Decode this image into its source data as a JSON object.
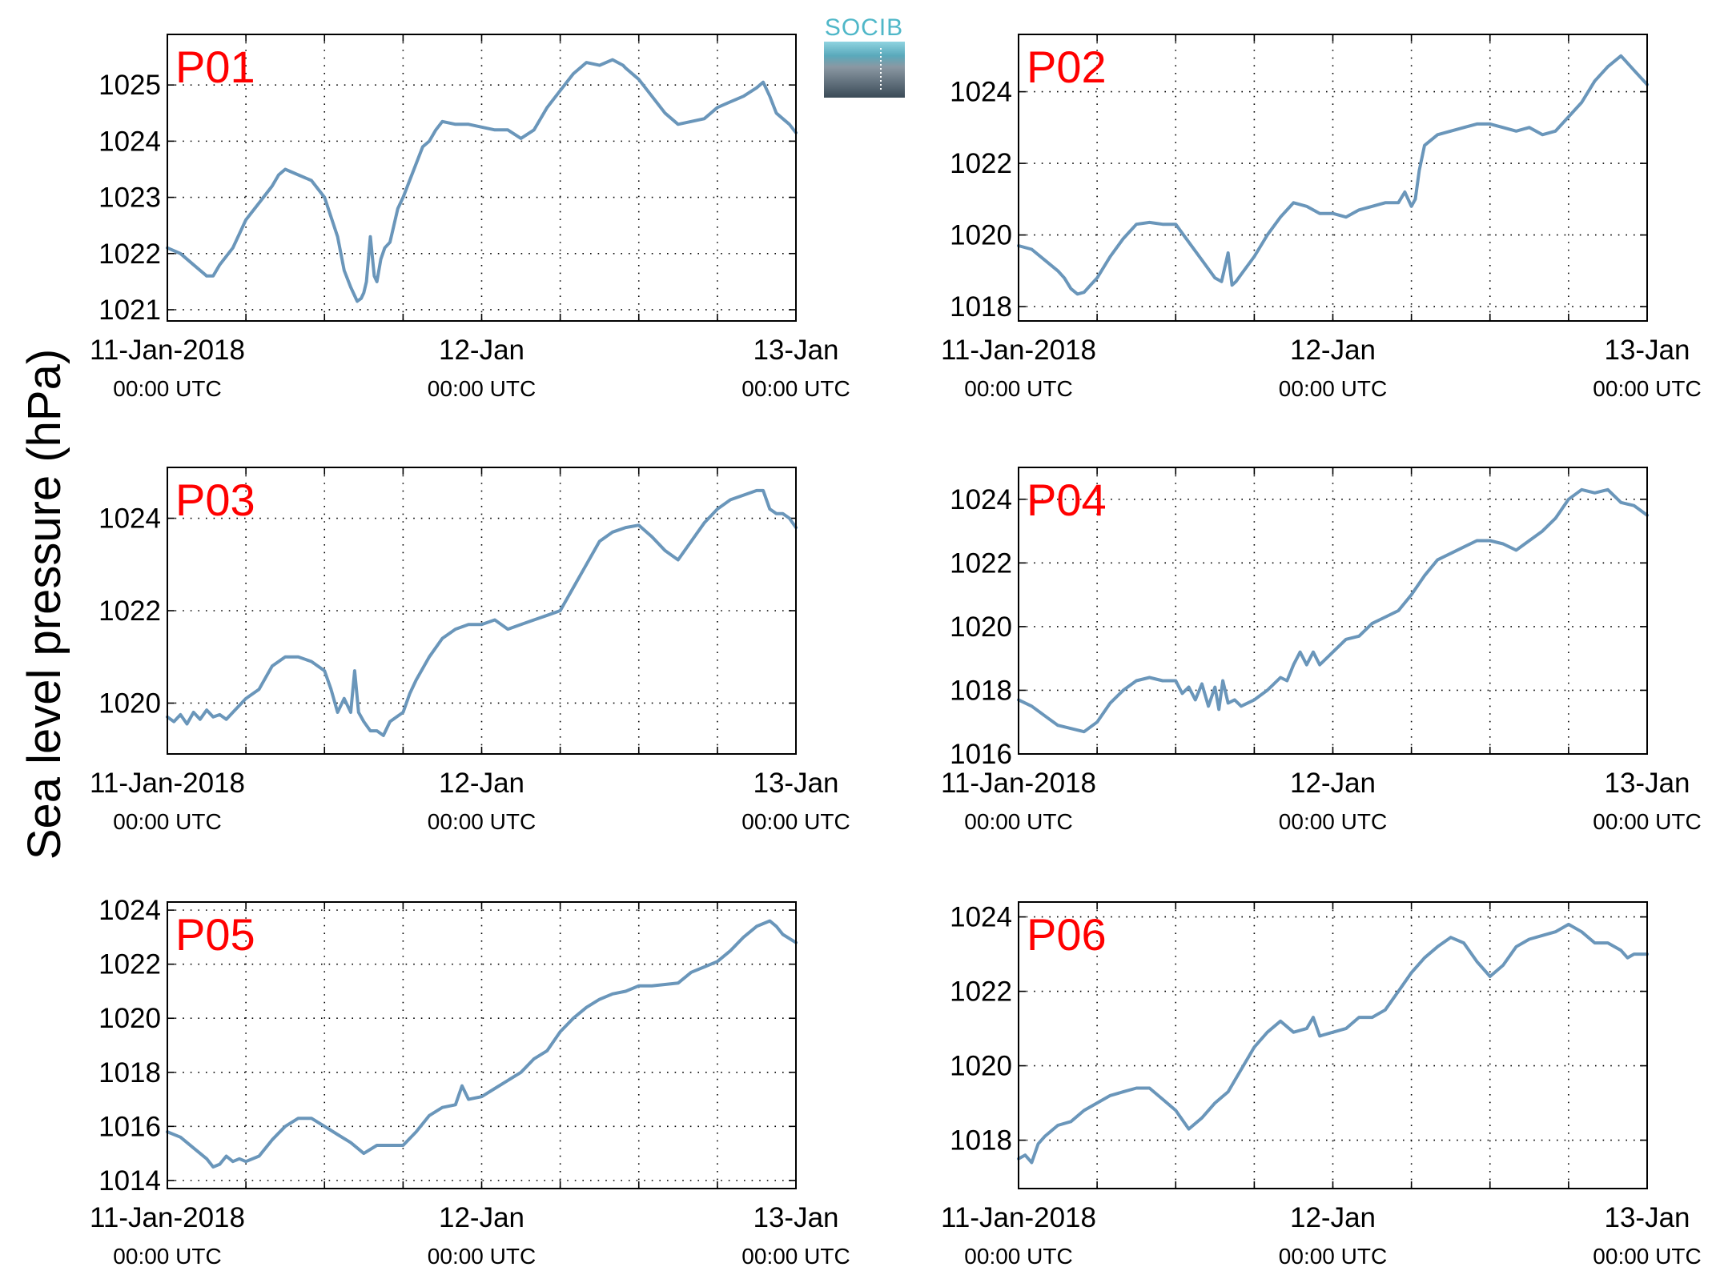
{
  "figure": {
    "ylabel": "Sea level pressure (hPa)",
    "logo_text": "SOCIB",
    "colors": {
      "line": "#6a96ba",
      "label": "#ff0000",
      "grid": "#000000"
    }
  },
  "chart_data": [
    {
      "type": "line",
      "name": "P01",
      "xlim": [
        0,
        48
      ],
      "ylim": [
        1020.8,
        1025.9
      ],
      "yticks": [
        1021,
        1022,
        1023,
        1024,
        1025
      ],
      "xticks": [
        {
          "t": 0,
          "date": "11-Jan-2018",
          "time": "00:00 UTC"
        },
        {
          "t": 24,
          "date": "12-Jan",
          "time": "00:00 UTC"
        },
        {
          "t": 48,
          "date": "13-Jan",
          "time": "00:00 UTC"
        }
      ],
      "x": [
        0,
        1,
        2,
        3,
        3.5,
        4,
        5,
        6,
        7,
        8,
        8.5,
        9,
        10,
        11,
        12,
        13,
        13.5,
        14,
        14.5,
        14.8,
        15,
        15.2,
        15.5,
        15.8,
        16,
        16.3,
        16.6,
        17,
        17.6,
        18,
        19,
        19.5,
        20,
        20.5,
        21,
        22,
        23,
        24,
        25,
        26,
        27,
        28,
        29,
        30,
        31,
        32,
        33,
        34,
        34.8,
        35,
        36,
        37,
        38,
        39,
        40,
        41,
        42,
        43,
        44,
        45,
        45.5,
        46,
        46.5,
        47,
        47.5,
        48
      ],
      "y": [
        1022.1,
        1022.0,
        1021.8,
        1021.6,
        1021.6,
        1021.8,
        1022.1,
        1022.6,
        1022.9,
        1023.2,
        1023.4,
        1023.5,
        1023.4,
        1023.3,
        1023.0,
        1022.3,
        1021.7,
        1021.4,
        1021.15,
        1021.2,
        1021.3,
        1021.5,
        1022.3,
        1021.6,
        1021.5,
        1021.9,
        1022.1,
        1022.2,
        1022.8,
        1023.0,
        1023.6,
        1023.9,
        1024.0,
        1024.2,
        1024.35,
        1024.3,
        1024.3,
        1024.25,
        1024.2,
        1024.2,
        1024.05,
        1024.2,
        1024.6,
        1024.9,
        1025.2,
        1025.4,
        1025.35,
        1025.45,
        1025.35,
        1025.3,
        1025.1,
        1024.8,
        1024.5,
        1024.3,
        1024.35,
        1024.4,
        1024.6,
        1024.7,
        1024.8,
        1024.95,
        1025.05,
        1024.8,
        1024.5,
        1024.4,
        1024.3,
        1024.15
      ]
    },
    {
      "type": "line",
      "name": "P02",
      "xlim": [
        0,
        48
      ],
      "ylim": [
        1017.6,
        1025.6
      ],
      "yticks": [
        1018,
        1020,
        1022,
        1024
      ],
      "xticks": [
        {
          "t": 0,
          "date": "11-Jan-2018",
          "time": "00:00 UTC"
        },
        {
          "t": 24,
          "date": "12-Jan",
          "time": "00:00 UTC"
        },
        {
          "t": 48,
          "date": "13-Jan",
          "time": "00:00 UTC"
        }
      ],
      "x": [
        0,
        1,
        2,
        3,
        3.5,
        4,
        4.5,
        5,
        5.5,
        6,
        7,
        8,
        9,
        10,
        11,
        12,
        13,
        14,
        15,
        15.5,
        16,
        16.3,
        16.6,
        17,
        18,
        19,
        20,
        21,
        22,
        23,
        24,
        25,
        26,
        27,
        28,
        29,
        29.5,
        30,
        30.3,
        30.6,
        31,
        32,
        33,
        34,
        35,
        36,
        37,
        38,
        39,
        40,
        41,
        42,
        43,
        43.5,
        44,
        45,
        46,
        47,
        48
      ],
      "y": [
        1019.7,
        1019.6,
        1019.3,
        1019.0,
        1018.8,
        1018.5,
        1018.35,
        1018.4,
        1018.6,
        1018.8,
        1019.4,
        1019.9,
        1020.3,
        1020.35,
        1020.3,
        1020.3,
        1019.8,
        1019.3,
        1018.8,
        1018.7,
        1019.5,
        1018.6,
        1018.7,
        1018.9,
        1019.4,
        1020.0,
        1020.5,
        1020.9,
        1020.8,
        1020.6,
        1020.6,
        1020.5,
        1020.7,
        1020.8,
        1020.9,
        1020.9,
        1021.2,
        1020.8,
        1021.0,
        1021.8,
        1022.5,
        1022.8,
        1022.9,
        1023.0,
        1023.1,
        1023.1,
        1023.0,
        1022.9,
        1023.0,
        1022.8,
        1022.9,
        1023.3,
        1023.7,
        1024.0,
        1024.3,
        1024.7,
        1025.0,
        1024.6,
        1024.2
      ]
    },
    {
      "type": "line",
      "name": "P03",
      "xlim": [
        0,
        48
      ],
      "ylim": [
        1018.9,
        1025.1
      ],
      "yticks": [
        1020,
        1022,
        1024
      ],
      "xticks": [
        {
          "t": 0,
          "date": "11-Jan-2018",
          "time": "00:00 UTC"
        },
        {
          "t": 24,
          "date": "12-Jan",
          "time": "00:00 UTC"
        },
        {
          "t": 48,
          "date": "13-Jan",
          "time": "00:00 UTC"
        }
      ],
      "x": [
        0,
        0.5,
        1,
        1.5,
        2,
        2.5,
        3,
        3.5,
        4,
        4.5,
        5,
        6,
        7,
        8,
        9,
        10,
        11,
        12,
        12.5,
        13,
        13.5,
        14,
        14.3,
        14.6,
        15,
        15.5,
        16,
        16.5,
        17,
        17.5,
        18,
        18.5,
        19,
        20,
        21,
        22,
        23,
        24,
        25,
        26,
        27,
        28,
        29,
        30,
        31,
        32,
        33,
        34,
        35,
        36,
        37,
        38,
        39,
        40,
        41,
        42,
        43,
        44,
        45,
        45.5,
        46,
        46.5,
        47,
        47.5,
        48
      ],
      "y": [
        1019.7,
        1019.6,
        1019.75,
        1019.55,
        1019.8,
        1019.65,
        1019.85,
        1019.7,
        1019.75,
        1019.65,
        1019.8,
        1020.1,
        1020.3,
        1020.8,
        1021.0,
        1021.0,
        1020.9,
        1020.7,
        1020.3,
        1019.8,
        1020.1,
        1019.8,
        1020.7,
        1019.8,
        1019.6,
        1019.4,
        1019.4,
        1019.3,
        1019.6,
        1019.7,
        1019.8,
        1020.2,
        1020.5,
        1021.0,
        1021.4,
        1021.6,
        1021.7,
        1021.7,
        1021.8,
        1021.6,
        1021.7,
        1021.8,
        1021.9,
        1022.0,
        1022.5,
        1023.0,
        1023.5,
        1023.7,
        1023.8,
        1023.85,
        1023.6,
        1023.3,
        1023.1,
        1023.5,
        1023.9,
        1024.2,
        1024.4,
        1024.5,
        1024.6,
        1024.6,
        1024.2,
        1024.1,
        1024.1,
        1024.0,
        1023.8
      ]
    },
    {
      "type": "line",
      "name": "P04",
      "xlim": [
        0,
        48
      ],
      "ylim": [
        1016.0,
        1025.0
      ],
      "yticks": [
        1016,
        1018,
        1020,
        1022,
        1024
      ],
      "xticks": [
        {
          "t": 0,
          "date": "11-Jan-2018",
          "time": "00:00 UTC"
        },
        {
          "t": 24,
          "date": "12-Jan",
          "time": "00:00 UTC"
        },
        {
          "t": 48,
          "date": "13-Jan",
          "time": "00:00 UTC"
        }
      ],
      "x": [
        0,
        1,
        2,
        3,
        4,
        5,
        6,
        7,
        8,
        9,
        10,
        11,
        12,
        12.5,
        13,
        13.5,
        14,
        14.5,
        15,
        15.3,
        15.6,
        16,
        16.5,
        17,
        18,
        19,
        20,
        20.5,
        21,
        21.5,
        22,
        22.5,
        23,
        23.5,
        24,
        25,
        26,
        27,
        28,
        29,
        30,
        31,
        32,
        33,
        34,
        35,
        36,
        37,
        38,
        39,
        40,
        41,
        42,
        43,
        44,
        45,
        46,
        47,
        48
      ],
      "y": [
        1017.7,
        1017.5,
        1017.2,
        1016.9,
        1016.8,
        1016.7,
        1017.0,
        1017.6,
        1018.0,
        1018.3,
        1018.4,
        1018.3,
        1018.3,
        1017.9,
        1018.1,
        1017.7,
        1018.2,
        1017.5,
        1018.1,
        1017.4,
        1018.3,
        1017.6,
        1017.7,
        1017.5,
        1017.7,
        1018.0,
        1018.4,
        1018.3,
        1018.8,
        1019.2,
        1018.8,
        1019.2,
        1018.8,
        1019.0,
        1019.2,
        1019.6,
        1019.7,
        1020.1,
        1020.3,
        1020.5,
        1021.0,
        1021.6,
        1022.1,
        1022.3,
        1022.5,
        1022.7,
        1022.7,
        1022.6,
        1022.4,
        1022.7,
        1023.0,
        1023.4,
        1024.0,
        1024.3,
        1024.2,
        1024.3,
        1023.9,
        1023.8,
        1023.5
      ]
    },
    {
      "type": "line",
      "name": "P05",
      "xlim": [
        0,
        48
      ],
      "ylim": [
        1013.7,
        1024.3
      ],
      "yticks": [
        1014,
        1016,
        1018,
        1020,
        1022,
        1024
      ],
      "xticks": [
        {
          "t": 0,
          "date": "11-Jan-2018",
          "time": "00:00 UTC"
        },
        {
          "t": 24,
          "date": "12-Jan",
          "time": "00:00 UTC"
        },
        {
          "t": 48,
          "date": "13-Jan",
          "time": "00:00 UTC"
        }
      ],
      "x": [
        0,
        1,
        2,
        3,
        3.5,
        4,
        4.5,
        5,
        5.5,
        6,
        7,
        8,
        9,
        10,
        11,
        12,
        13,
        14,
        15,
        16,
        17,
        18,
        19,
        20,
        21,
        22,
        22.5,
        23,
        24,
        25,
        26,
        27,
        28,
        29,
        30,
        31,
        32,
        33,
        34,
        35,
        36,
        37,
        38,
        39,
        40,
        41,
        42,
        43,
        44,
        45,
        46,
        46.5,
        47,
        48
      ],
      "y": [
        1015.8,
        1015.6,
        1015.2,
        1014.8,
        1014.5,
        1014.6,
        1014.9,
        1014.7,
        1014.8,
        1014.7,
        1014.9,
        1015.5,
        1016.0,
        1016.3,
        1016.3,
        1016.0,
        1015.7,
        1015.4,
        1015.0,
        1015.3,
        1015.3,
        1015.3,
        1015.8,
        1016.4,
        1016.7,
        1016.8,
        1017.5,
        1017.0,
        1017.1,
        1017.4,
        1017.7,
        1018.0,
        1018.5,
        1018.8,
        1019.5,
        1020.0,
        1020.4,
        1020.7,
        1020.9,
        1021.0,
        1021.2,
        1021.2,
        1021.25,
        1021.3,
        1021.7,
        1021.9,
        1022.1,
        1022.5,
        1023.0,
        1023.4,
        1023.6,
        1023.4,
        1023.1,
        1022.8
      ]
    },
    {
      "type": "line",
      "name": "P06",
      "xlim": [
        0,
        48
      ],
      "ylim": [
        1016.7,
        1024.4
      ],
      "yticks": [
        1018,
        1020,
        1022,
        1024
      ],
      "xticks": [
        {
          "t": 0,
          "date": "11-Jan-2018",
          "time": "00:00 UTC"
        },
        {
          "t": 24,
          "date": "12-Jan",
          "time": "00:00 UTC"
        },
        {
          "t": 48,
          "date": "13-Jan",
          "time": "00:00 UTC"
        }
      ],
      "x": [
        0,
        0.5,
        1,
        1.5,
        2,
        3,
        4,
        5,
        6,
        7,
        8,
        9,
        10,
        11,
        12,
        13,
        14,
        15,
        16,
        17,
        18,
        19,
        20,
        21,
        22,
        22.5,
        23,
        24,
        25,
        26,
        27,
        28,
        29,
        30,
        31,
        32,
        33,
        34,
        35,
        36,
        37,
        38,
        39,
        40,
        41,
        42,
        43,
        44,
        45,
        46,
        46.5,
        47,
        48
      ],
      "y": [
        1017.5,
        1017.6,
        1017.4,
        1017.9,
        1018.1,
        1018.4,
        1018.5,
        1018.8,
        1019.0,
        1019.2,
        1019.3,
        1019.4,
        1019.4,
        1019.1,
        1018.8,
        1018.3,
        1018.6,
        1019.0,
        1019.3,
        1019.9,
        1020.5,
        1020.9,
        1021.2,
        1020.9,
        1021.0,
        1021.3,
        1020.8,
        1020.9,
        1021.0,
        1021.3,
        1021.3,
        1021.5,
        1022.0,
        1022.5,
        1022.9,
        1023.2,
        1023.45,
        1023.3,
        1022.8,
        1022.4,
        1022.7,
        1023.2,
        1023.4,
        1023.5,
        1023.6,
        1023.8,
        1023.6,
        1023.3,
        1023.3,
        1023.1,
        1022.9,
        1023.0,
        1023.0
      ]
    }
  ]
}
